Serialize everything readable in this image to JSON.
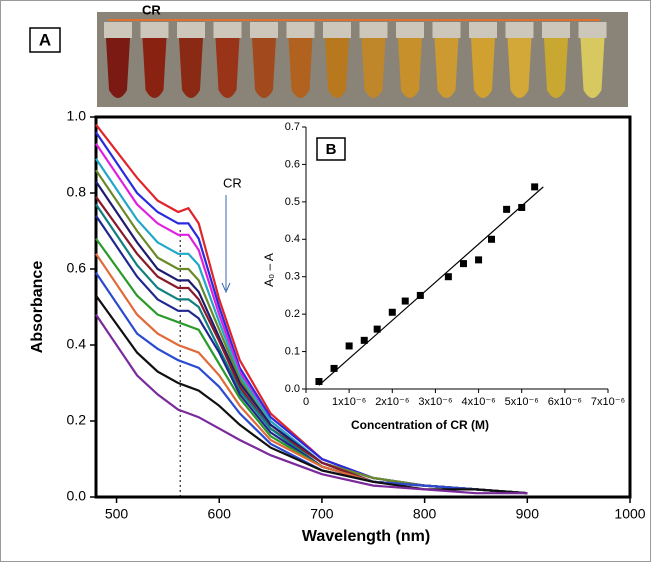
{
  "chart_data": [
    {
      "type": "line",
      "panel_label": "A",
      "photo_label": "CR",
      "annotation": "CR",
      "xlabel": "Wavelength (nm)",
      "ylabel": "Absorbance",
      "xlim": [
        480,
        1000
      ],
      "ylim": [
        0,
        1.0
      ],
      "xticks": [
        500,
        600,
        700,
        800,
        900,
        1000
      ],
      "yticks": [
        {
          "value": 0,
          "label": "0.0"
        },
        0.2,
        0.4,
        0.6,
        0.8,
        {
          "value": 1.0,
          "label": "1.0"
        }
      ],
      "reference_x": 562,
      "x": [
        480,
        520,
        540,
        560,
        570,
        580,
        600,
        620,
        650,
        700,
        750,
        800,
        850,
        900
      ],
      "series": [
        {
          "color": "#e0242a",
          "values": [
            0.98,
            0.84,
            0.78,
            0.75,
            0.76,
            0.72,
            0.52,
            0.36,
            0.22,
            0.1,
            0.05,
            0.03,
            0.02,
            0.01
          ]
        },
        {
          "color": "#2a2adf",
          "values": [
            0.96,
            0.8,
            0.75,
            0.72,
            0.72,
            0.68,
            0.5,
            0.34,
            0.21,
            0.1,
            0.05,
            0.03,
            0.02,
            0.01
          ]
        },
        {
          "color": "#e020e0",
          "values": [
            0.93,
            0.77,
            0.72,
            0.69,
            0.69,
            0.65,
            0.48,
            0.33,
            0.2,
            0.09,
            0.05,
            0.03,
            0.02,
            0.01
          ]
        },
        {
          "color": "#20a8c8",
          "values": [
            0.89,
            0.73,
            0.67,
            0.64,
            0.64,
            0.61,
            0.46,
            0.32,
            0.2,
            0.09,
            0.05,
            0.03,
            0.02,
            0.01
          ]
        },
        {
          "color": "#6a8a2a",
          "values": [
            0.86,
            0.7,
            0.63,
            0.6,
            0.6,
            0.57,
            0.44,
            0.31,
            0.19,
            0.09,
            0.05,
            0.03,
            0.02,
            0.01
          ]
        },
        {
          "color": "#1c1c70",
          "values": [
            0.83,
            0.67,
            0.6,
            0.57,
            0.57,
            0.54,
            0.42,
            0.3,
            0.19,
            0.09,
            0.04,
            0.03,
            0.02,
            0.01
          ]
        },
        {
          "color": "#8a1a2a",
          "values": [
            0.79,
            0.64,
            0.58,
            0.55,
            0.55,
            0.52,
            0.41,
            0.29,
            0.18,
            0.09,
            0.04,
            0.03,
            0.02,
            0.01
          ]
        },
        {
          "color": "#108080",
          "values": [
            0.77,
            0.61,
            0.55,
            0.52,
            0.52,
            0.5,
            0.39,
            0.28,
            0.18,
            0.08,
            0.04,
            0.03,
            0.02,
            0.01
          ]
        },
        {
          "color": "#202890",
          "values": [
            0.74,
            0.58,
            0.52,
            0.49,
            0.49,
            0.47,
            0.38,
            0.27,
            0.17,
            0.08,
            0.04,
            0.03,
            0.02,
            0.01
          ]
        },
        {
          "color": "#2a9a2a",
          "values": [
            0.68,
            0.53,
            0.48,
            0.46,
            0.45,
            0.44,
            0.35,
            0.26,
            0.16,
            0.08,
            0.04,
            0.03,
            0.02,
            0.01
          ]
        },
        {
          "color": "#e06a3a",
          "values": [
            0.64,
            0.48,
            0.43,
            0.4,
            0.39,
            0.38,
            0.32,
            0.24,
            0.15,
            0.08,
            0.04,
            0.03,
            0.02,
            0.01
          ]
        },
        {
          "color": "#2a4ad0",
          "values": [
            0.59,
            0.43,
            0.39,
            0.36,
            0.35,
            0.34,
            0.29,
            0.22,
            0.14,
            0.07,
            0.04,
            0.03,
            0.02,
            0.01
          ]
        },
        {
          "color": "#101010",
          "values": [
            0.53,
            0.38,
            0.33,
            0.3,
            0.29,
            0.28,
            0.24,
            0.19,
            0.13,
            0.07,
            0.04,
            0.02,
            0.02,
            0.01
          ]
        },
        {
          "color": "#7a2a9a",
          "values": [
            0.48,
            0.32,
            0.27,
            0.23,
            0.22,
            0.21,
            0.18,
            0.15,
            0.11,
            0.06,
            0.03,
            0.02,
            0.01,
            0.01
          ]
        }
      ]
    },
    {
      "type": "scatter",
      "panel_label": "B",
      "xlabel": "Concentration of CR (M)",
      "ylabel": "A₀ – A",
      "xlim": [
        0,
        7e-06
      ],
      "ylim": [
        0,
        0.7
      ],
      "xticks": [
        0,
        {
          "value": 1e-06,
          "label": "1x10⁻⁶"
        },
        {
          "value": 2e-06,
          "label": "2x10⁻⁶"
        },
        {
          "value": 3e-06,
          "label": "3x10⁻⁶"
        },
        {
          "value": 4e-06,
          "label": "4x10⁻⁶"
        },
        {
          "value": 5e-06,
          "label": "5x10⁻⁶"
        },
        {
          "value": 6e-06,
          "label": "6x10⁻⁶"
        },
        {
          "value": 7e-06,
          "label": "7x10⁻⁶"
        }
      ],
      "yticks": [
        {
          "value": 0,
          "label": "0.0"
        },
        0.1,
        0.2,
        0.3,
        0.4,
        0.5,
        0.6,
        0.7
      ],
      "color": "#000000",
      "x": [
        3e-07,
        6.5e-07,
        1e-06,
        1.35e-06,
        1.65e-06,
        2e-06,
        2.3e-06,
        2.65e-06,
        3.3e-06,
        3.65e-06,
        4e-06,
        4.3e-06,
        4.65e-06,
        5e-06,
        5.3e-06
      ],
      "values": [
        0.02,
        0.055,
        0.115,
        0.13,
        0.16,
        0.205,
        0.235,
        0.25,
        0.3,
        0.335,
        0.345,
        0.4,
        0.48,
        0.485,
        0.54
      ],
      "fit_line": {
        "x": [
          3e-07,
          5.5e-06
        ],
        "y": [
          0.01,
          0.54
        ]
      }
    }
  ]
}
